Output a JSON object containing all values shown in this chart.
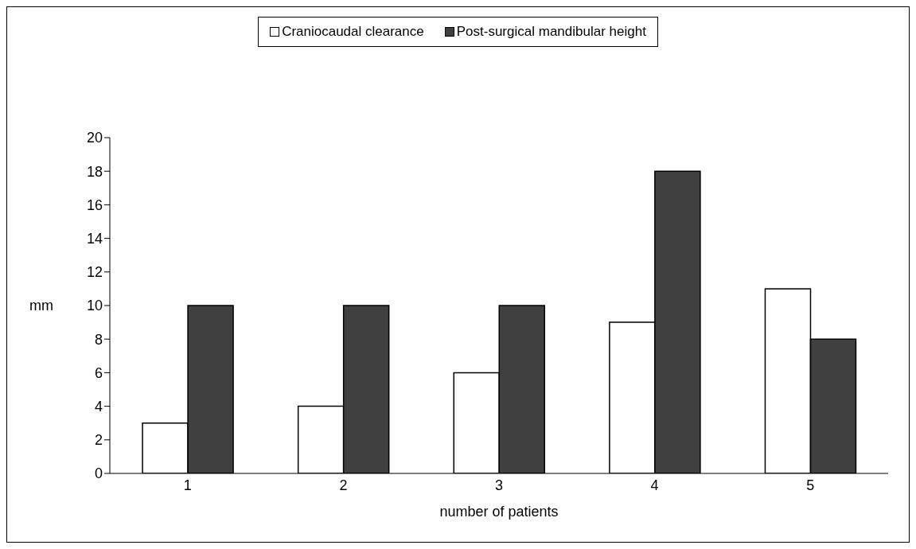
{
  "chart_data": {
    "type": "bar",
    "xlabel": "number of patients",
    "ylabel": "mm",
    "categories": [
      "1",
      "2",
      "3",
      "4",
      "5"
    ],
    "series": [
      {
        "name": "Craniocaudal clearance",
        "color": "#ffffff",
        "values": [
          3,
          4,
          6,
          9,
          11
        ]
      },
      {
        "name": "Post-surgical mandibular height",
        "color": "#404040",
        "values": [
          10,
          10,
          10,
          18,
          8
        ]
      }
    ],
    "ylim": [
      0,
      20
    ],
    "yticks": [
      0,
      2,
      4,
      6,
      8,
      10,
      12,
      14,
      16,
      18,
      20
    ],
    "legend": "top"
  }
}
